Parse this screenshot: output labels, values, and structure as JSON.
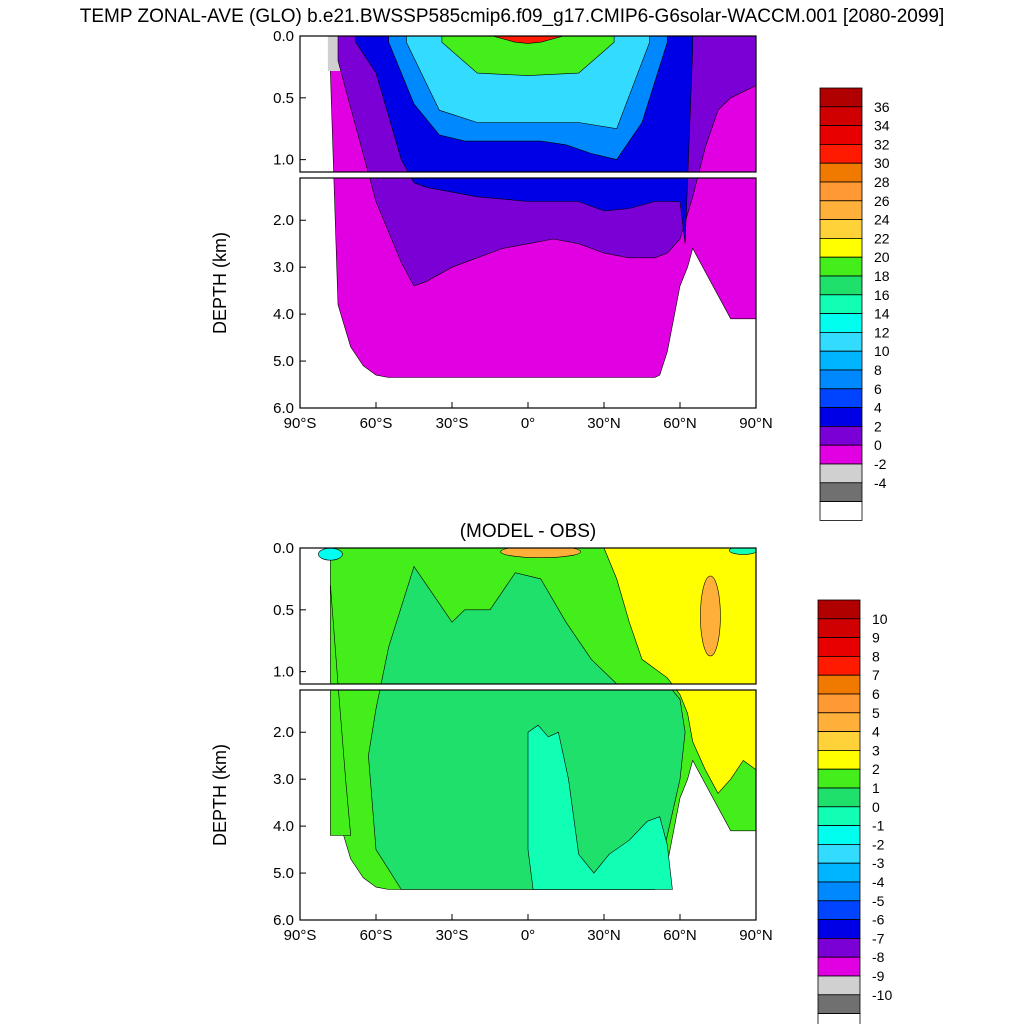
{
  "title": "TEMP ZONAL-AVE (GLO) b.e21.BWSSP585cmip6.f09_g17.CMIP6-G6solar-WACCM.001 [2080-2099]",
  "chart_data": [
    {
      "type": "heatmap",
      "title": "TEMP ZONAL-AVE (GLO) b.e21.BWSSP585cmip6.f09_g17.CMIP6-G6solar-WACCM.001 [2080-2099]",
      "xlabel": "",
      "ylabel": "DEPTH (km)",
      "xlim": [
        -90,
        90
      ],
      "ylim": [
        0,
        6
      ],
      "x_ticks": [
        "90°S",
        "60°S",
        "30°S",
        "0°",
        "30°N",
        "60°N",
        "90°N"
      ],
      "y_ticks_upper": [
        "0.0",
        "0.5",
        "1.0"
      ],
      "y_ticks_lower": [
        "2.0",
        "3.0",
        "4.0",
        "5.0",
        "6.0"
      ],
      "upper_panel_depth_range_km": [
        0,
        1.1
      ],
      "lower_panel_depth_range_km": [
        1.1,
        6.0
      ],
      "colorbar_labels": [
        "36",
        "34",
        "32",
        "30",
        "28",
        "26",
        "24",
        "22",
        "20",
        "18",
        "16",
        "14",
        "12",
        "10",
        "8",
        "6",
        "4",
        "2",
        "0",
        "-2",
        "-4"
      ],
      "colorbar_colors": [
        "#b00000",
        "#d10000",
        "#e80000",
        "#ff1a00",
        "#f07a00",
        "#ff9933",
        "#ffb03b",
        "#ffd23a",
        "#ffff00",
        "#43ee1a",
        "#1ee06b",
        "#11ffb5",
        "#00ffee",
        "#33dcff",
        "#00b5ff",
        "#0089ff",
        "#0044ff",
        "#0000e6",
        "#7b00d6",
        "#e100e1",
        "#d0d0d0",
        "#707070",
        "#ffffff"
      ],
      "depth_profiles_km": [
        {
          "name": "ocean floor",
          "x": [
            -78,
            -75,
            -70,
            -65,
            -60,
            -55,
            -50,
            -45,
            -40,
            -30,
            -20,
            -10,
            0,
            10,
            20,
            30,
            40,
            50,
            52,
            55,
            60,
            63,
            65,
            70,
            75,
            80,
            85,
            90
          ],
          "y": [
            0.3,
            3.8,
            4.7,
            5.1,
            5.3,
            5.35,
            5.35,
            5.35,
            5.35,
            5.35,
            5.35,
            5.35,
            5.35,
            5.35,
            5.35,
            5.35,
            5.35,
            5.35,
            5.3,
            4.8,
            3.4,
            3.0,
            2.6,
            3.1,
            3.6,
            4.1,
            4.1,
            4.1
          ]
        },
        {
          "name": "4 deg isotherm",
          "x": [
            -75,
            -60,
            -50,
            -45,
            -40,
            -30,
            -20,
            -10,
            0,
            10,
            20,
            30,
            40,
            50,
            55,
            60,
            65,
            70,
            75,
            80,
            90
          ],
          "y": [
            0.2,
            1.6,
            2.9,
            3.4,
            3.3,
            3.0,
            2.8,
            2.6,
            2.5,
            2.4,
            2.5,
            2.7,
            2.8,
            2.8,
            2.7,
            2.4,
            1.5,
            0.9,
            0.6,
            0.5,
            0.4
          ]
        },
        {
          "name": "6 deg isotherm",
          "x": [
            -68,
            -60,
            -50,
            -45,
            -40,
            -30,
            -20,
            -10,
            0,
            10,
            20,
            30,
            40,
            50,
            60,
            62,
            65
          ],
          "y": [
            0.05,
            0.3,
            1.0,
            1.2,
            1.3,
            1.4,
            1.5,
            1.55,
            1.6,
            1.6,
            1.6,
            1.8,
            1.75,
            1.6,
            1.6,
            2.5,
            0.1
          ]
        },
        {
          "name": "10 deg isotherm",
          "x": [
            -55,
            -45,
            -35,
            -25,
            -15,
            -5,
            5,
            15,
            25,
            35,
            45,
            55
          ],
          "y": [
            0.05,
            0.55,
            0.8,
            0.85,
            0.85,
            0.85,
            0.85,
            0.88,
            0.95,
            1.0,
            0.7,
            0.05
          ]
        },
        {
          "name": "16 deg isotherm",
          "x": [
            -40,
            -30,
            -20,
            -10,
            0,
            10,
            20,
            30,
            40
          ],
          "y": [
            0.05,
            0.35,
            0.45,
            0.45,
            0.45,
            0.45,
            0.45,
            0.35,
            0.05
          ]
        },
        {
          "name": "24 deg isotherm",
          "x": [
            -22,
            -10,
            0,
            10,
            22
          ],
          "y": [
            0.0,
            0.12,
            0.14,
            0.12,
            0.0
          ]
        }
      ]
    },
    {
      "type": "heatmap",
      "title": "(MODEL - OBS)",
      "xlabel": "",
      "ylabel": "DEPTH (km)",
      "xlim": [
        -90,
        90
      ],
      "ylim": [
        0,
        6
      ],
      "x_ticks": [
        "90°S",
        "60°S",
        "30°S",
        "0°",
        "30°N",
        "60°N",
        "90°N"
      ],
      "y_ticks_upper": [
        "0.0",
        "0.5",
        "1.0"
      ],
      "y_ticks_lower": [
        "2.0",
        "3.0",
        "4.0",
        "5.0",
        "6.0"
      ],
      "colorbar_labels": [
        "10",
        "9",
        "8",
        "7",
        "6",
        "5",
        "4",
        "3",
        "2",
        "1",
        "0",
        "-1",
        "-2",
        "-3",
        "-4",
        "-5",
        "-6",
        "-7",
        "-8",
        "-9",
        "-10"
      ],
      "colorbar_colors": [
        "#b00000",
        "#d10000",
        "#e80000",
        "#ff1a00",
        "#f07a00",
        "#ff9933",
        "#ffb03b",
        "#ffd23a",
        "#ffff00",
        "#43ee1a",
        "#1ee06b",
        "#11ffb5",
        "#00ffee",
        "#33dcff",
        "#00b5ff",
        "#0089ff",
        "#0044ff",
        "#0000e6",
        "#7b00d6",
        "#e100e1",
        "#d0d0d0",
        "#707070",
        "#ffffff"
      ],
      "regions": [
        {
          "name": "0 to 1 band (green)",
          "x": [
            -50,
            -40,
            -30,
            -20,
            -10,
            0,
            10,
            20,
            30
          ],
          "y": [
            0.1,
            1.0,
            2.0,
            3.0,
            3.5,
            4.0,
            4.5,
            5.0,
            5.35
          ]
        },
        {
          "name": "2 to 3 band (yellow) north",
          "x": [
            30,
            40,
            50,
            55,
            60,
            65,
            70,
            75,
            80,
            90
          ],
          "y": [
            0.1,
            0.4,
            0.8,
            1.1,
            1.5,
            2.0,
            2.4,
            2.8,
            3.2,
            3.0
          ]
        },
        {
          "name": "-1 to 0 band (cyan) deep",
          "x": [
            0,
            5,
            10,
            15,
            20,
            30,
            40,
            50,
            55
          ],
          "y": [
            1.9,
            1.8,
            2.2,
            3.0,
            4.0,
            4.5,
            4.6,
            4.8,
            5.3
          ]
        }
      ]
    }
  ]
}
